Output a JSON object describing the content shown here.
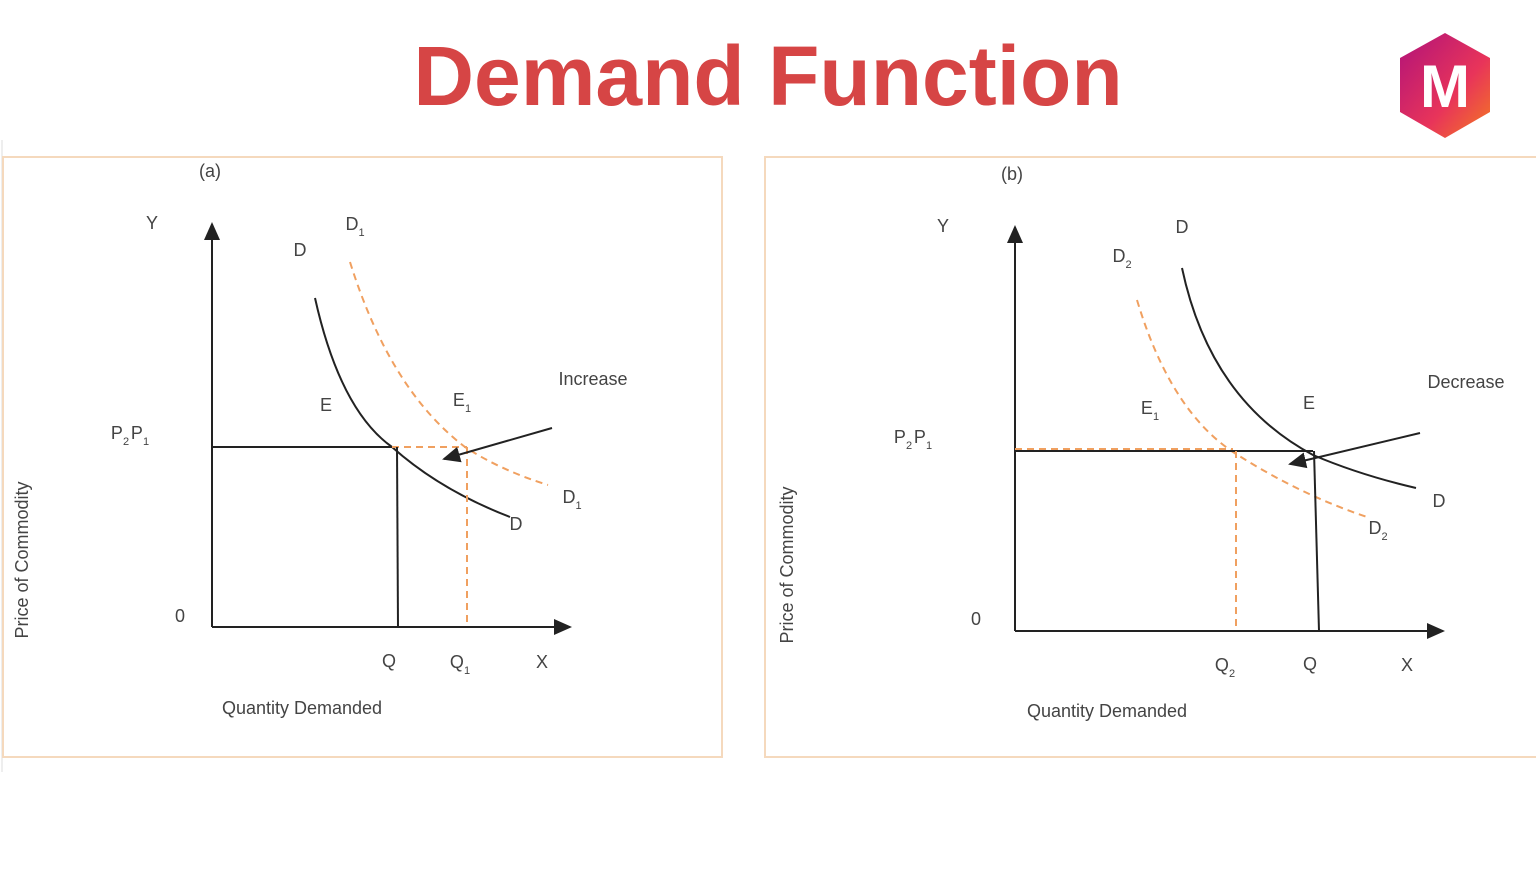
{
  "title": "Demand Function",
  "logo": "M",
  "panels": [
    {
      "tag": "(a)",
      "y_axis": "Y",
      "x_axis": "X",
      "origin": "0",
      "y_title": "Price of Commodity",
      "x_title": "Quantity Demanded",
      "labels": [
        {
          "text": "D",
          "sub": "1"
        },
        {
          "text": "D"
        },
        {
          "text": "E"
        },
        {
          "text": "E",
          "sub": "1"
        },
        {
          "text": "Increase"
        },
        {
          "text": "P",
          "sub": "2"
        },
        {
          "text": "P",
          "sub": "1"
        },
        {
          "text": "D",
          "sub": "1"
        },
        {
          "text": "D"
        },
        {
          "text": "Q"
        },
        {
          "text": "Q",
          "sub": "1"
        }
      ]
    },
    {
      "tag": "(b)",
      "y_axis": "Y",
      "x_axis": "X",
      "origin": "0",
      "y_title": "Price of Commodity",
      "x_title": "Quantity Demanded",
      "labels": [
        {
          "text": "D"
        },
        {
          "text": "D",
          "sub": "2"
        },
        {
          "text": "E",
          "sub": "1"
        },
        {
          "text": "E"
        },
        {
          "text": "Decrease"
        },
        {
          "text": "P",
          "sub": "2"
        },
        {
          "text": "P",
          "sub": "1"
        },
        {
          "text": "D"
        },
        {
          "text": "D",
          "sub": "2"
        },
        {
          "text": "Q",
          "sub": "2"
        },
        {
          "text": "Q"
        }
      ]
    }
  ]
}
